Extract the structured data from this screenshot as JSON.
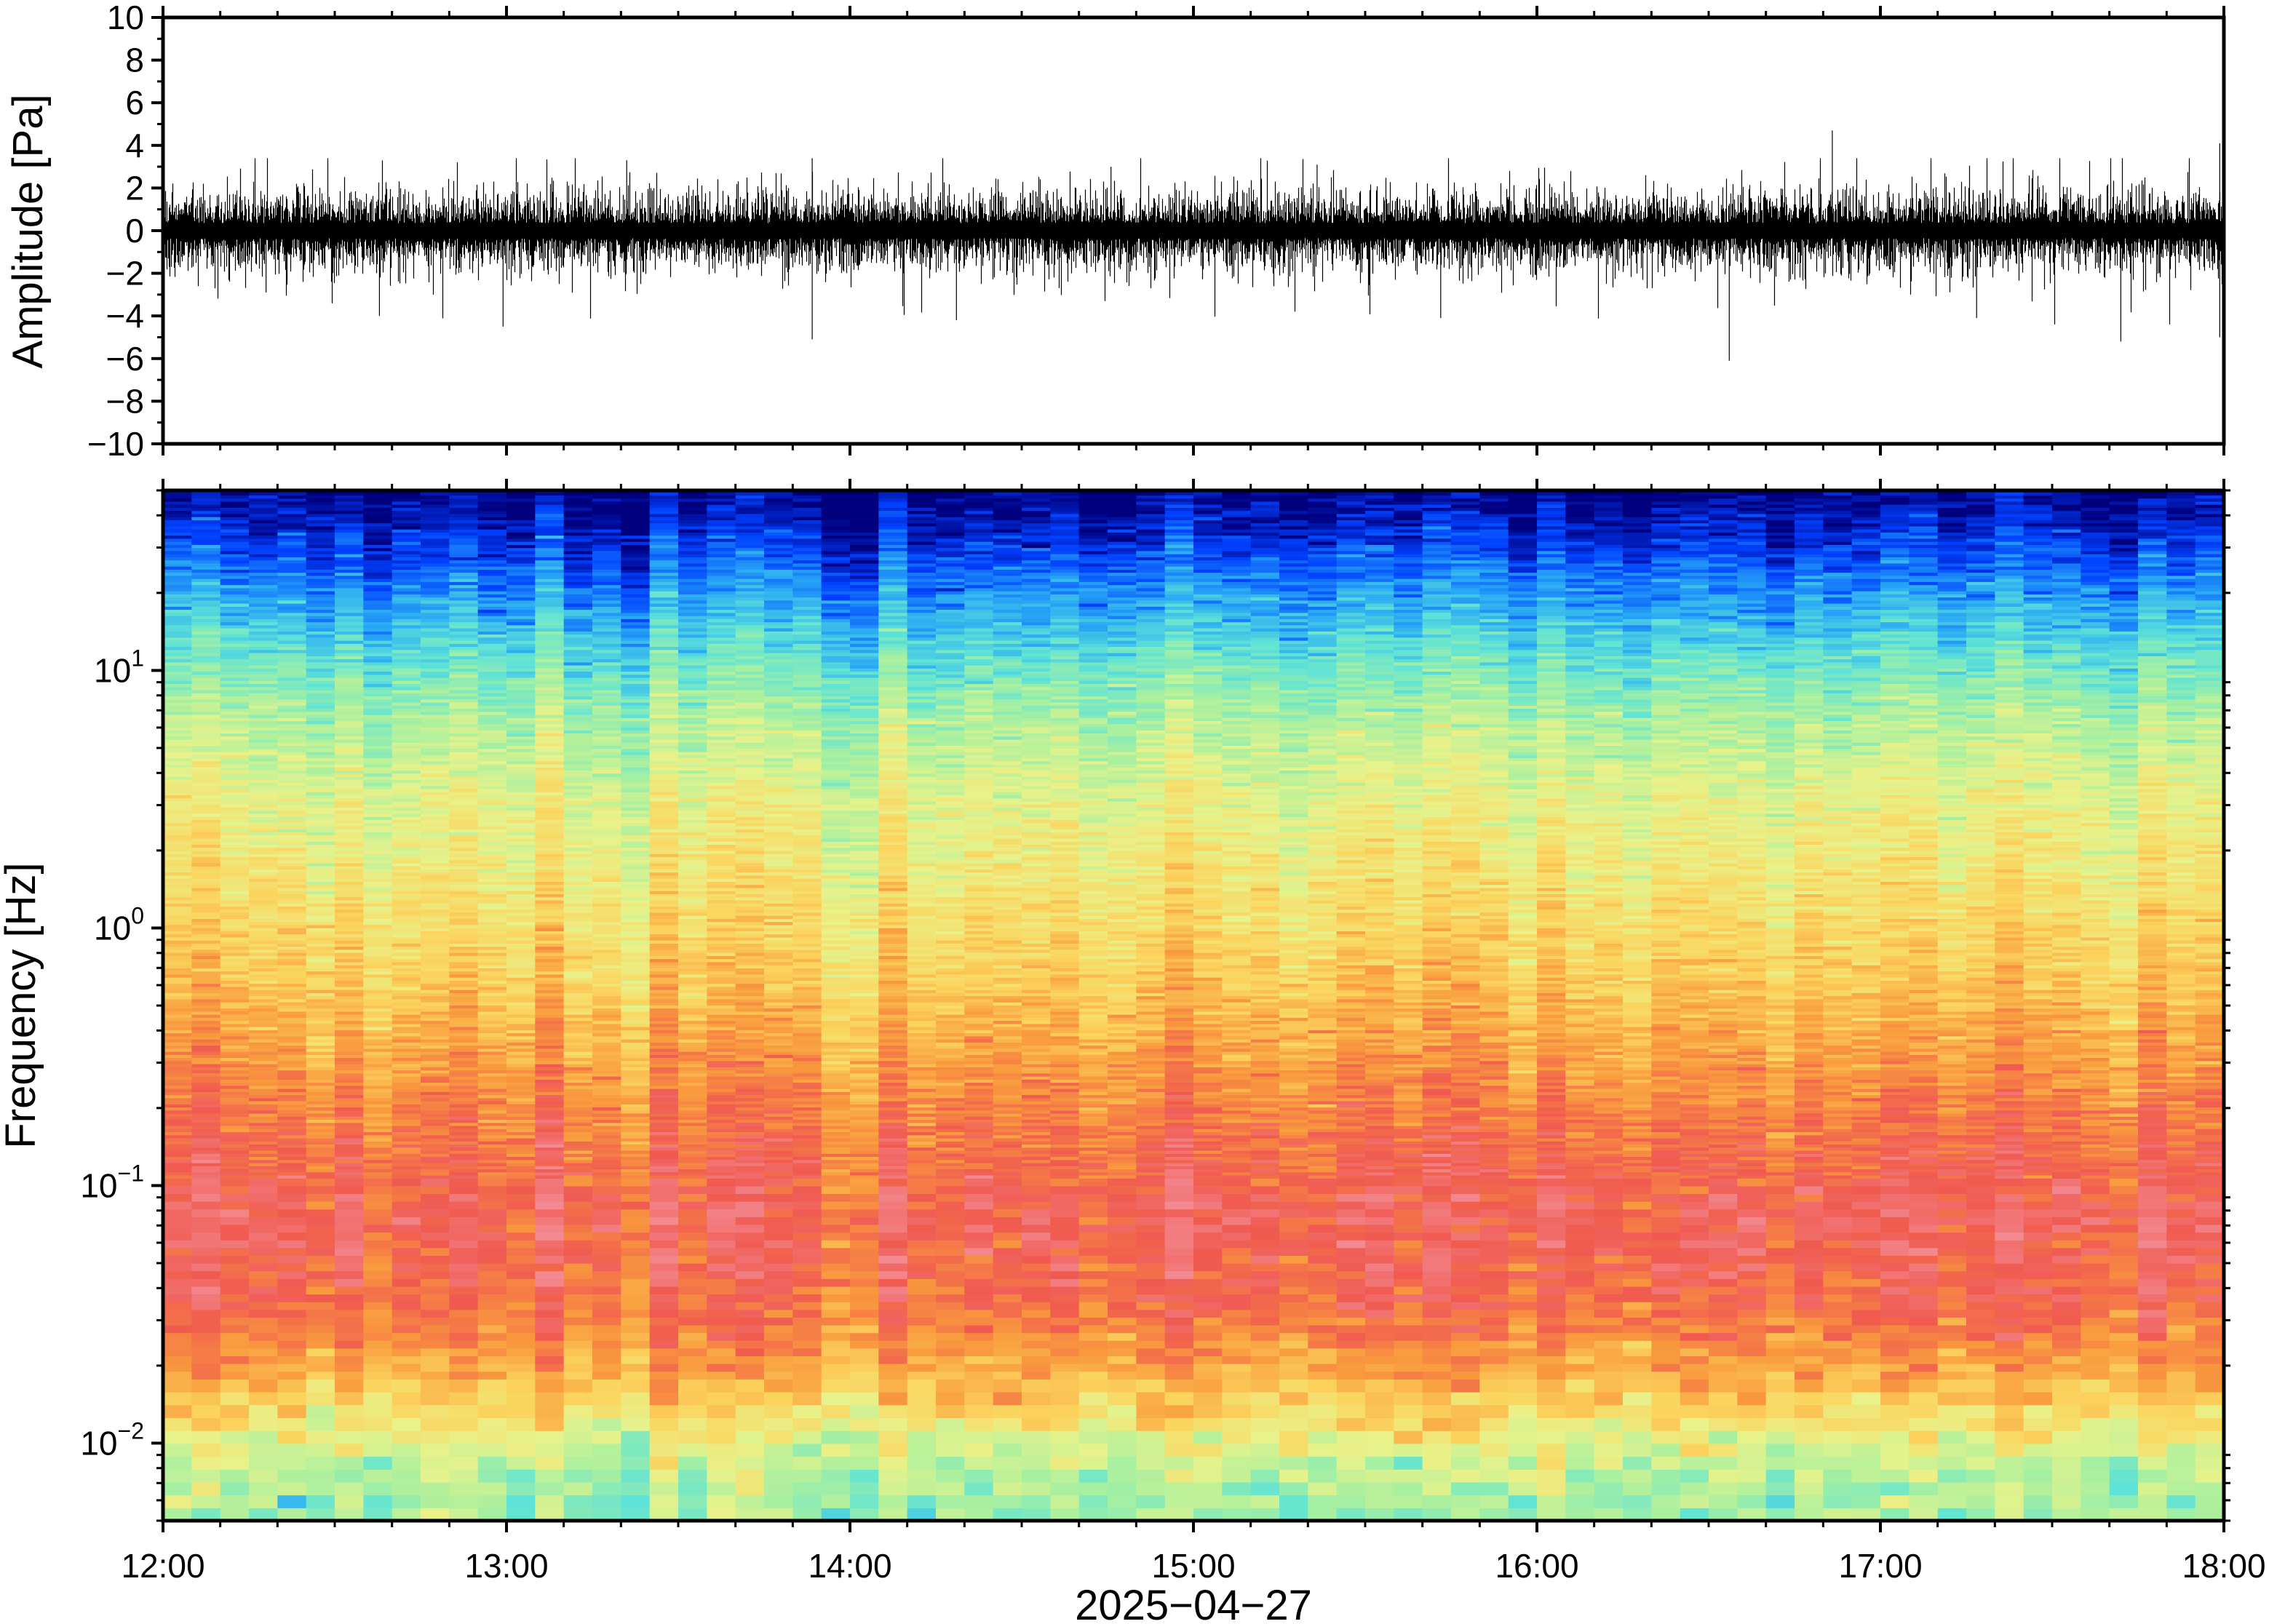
{
  "chart_data": [
    {
      "type": "line",
      "panel": "waveform",
      "title": "",
      "xlabel": "",
      "ylabel": "Amplitude [Pa]",
      "xlim": [
        "12:00",
        "18:00"
      ],
      "ylim": [
        -10,
        10
      ],
      "yticks": [
        10,
        8,
        6,
        4,
        2,
        0,
        -2,
        -4,
        -6,
        -8,
        -10
      ],
      "ytick_labels": [
        "10",
        "8",
        "6",
        "4",
        "2",
        "0",
        "−2",
        "−4",
        "−6",
        "−8",
        "−10"
      ],
      "typical_range": [
        -2.5,
        2.5
      ],
      "peak_max": 4.7,
      "peak_min": -6.1,
      "trace_color": "#000000",
      "grid": false
    },
    {
      "type": "heatmap",
      "panel": "spectrogram",
      "title": "",
      "xlabel": "2025−04−27",
      "ylabel": "Frequency [Hz]",
      "x_tick_labels": [
        "12:00",
        "13:00",
        "14:00",
        "15:00",
        "16:00",
        "17:00",
        "18:00"
      ],
      "y_scale": "log",
      "ylim": [
        0.005,
        50
      ],
      "yticks": [
        {
          "base": "10",
          "exp": "1"
        },
        {
          "base": "10",
          "exp": "0"
        },
        {
          "base": "10",
          "exp": "−1"
        },
        {
          "base": "10",
          "exp": "−2"
        }
      ],
      "colormap": [
        "#00007f",
        "#0040ff",
        "#29a9f5",
        "#5fe3d6",
        "#a8f0a0",
        "#e8f28a",
        "#fbd45e",
        "#f99a3e",
        "#f05a50",
        "#f38a92"
      ],
      "time_columns": 72,
      "grid": false
    }
  ]
}
